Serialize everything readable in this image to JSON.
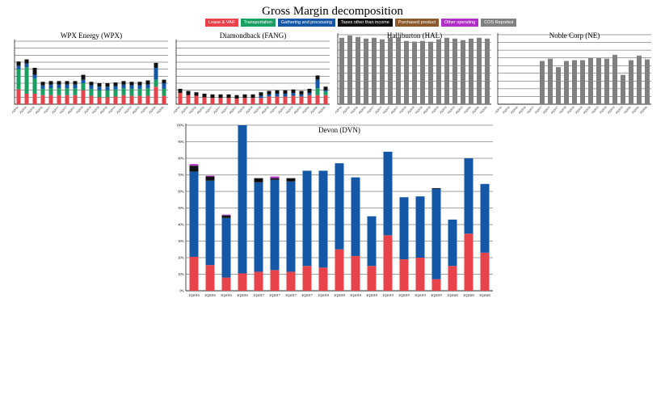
{
  "title": "Gross Margin decomposition",
  "legend": [
    {
      "label": "Lease & VAR",
      "color": "#e8434b"
    },
    {
      "label": "Transportation",
      "color": "#1a9e62"
    },
    {
      "label": "Gathering and processing",
      "color": "#1357a6"
    },
    {
      "label": "Taxes other than income",
      "color": "#111111"
    },
    {
      "label": "Purchased product",
      "color": "#8c5a2b"
    },
    {
      "label": "Other operating",
      "color": "#b22fc7"
    },
    {
      "label": "COS Reported",
      "color": "#808080"
    }
  ],
  "chart_data": [
    {
      "type": "bar",
      "stacked": true,
      "title": "WPX Energy (WPX)",
      "categories": [
        "1Q2016",
        "2Q2016",
        "3Q2016",
        "4Q2016",
        "1Q2017",
        "2Q2017",
        "3Q2017",
        "4Q2017",
        "1Q2018",
        "2Q2018",
        "3Q2018",
        "4Q2018",
        "1Q2019",
        "2Q2019",
        "3Q2019",
        "4Q2019",
        "1Q2020",
        "2Q2020",
        "3Q2020"
      ],
      "series": [
        {
          "name": "Lease & VAR",
          "values": [
            21,
            15,
            15,
            13,
            13,
            13,
            13,
            13,
            20,
            12,
            10,
            10,
            11,
            13,
            12,
            12,
            12,
            25,
            12
          ]
        },
        {
          "name": "Transportation",
          "values": [
            29,
            38,
            22,
            9,
            10,
            10,
            10,
            10,
            10,
            10,
            10,
            10,
            10,
            10,
            10,
            10,
            11,
            10,
            10
          ]
        },
        {
          "name": "Gathering and processing",
          "values": [
            5,
            5,
            5,
            5,
            5,
            5,
            5,
            5,
            5,
            5,
            5,
            5,
            5,
            5,
            5,
            5,
            5,
            17,
            8
          ]
        },
        {
          "name": "Taxes other than income",
          "values": [
            6,
            6,
            10,
            5,
            5,
            5,
            5,
            5,
            7,
            5,
            5,
            5,
            5,
            5,
            5,
            5,
            6,
            7,
            5
          ]
        }
      ],
      "ylim": [
        0,
        90
      ]
    },
    {
      "type": "bar",
      "stacked": true,
      "title": "Diamondback (FANG)",
      "categories": [
        "1Q2016",
        "2Q2016",
        "3Q2016",
        "4Q2016",
        "1Q2017",
        "2Q2017",
        "3Q2017",
        "4Q2017",
        "1Q2018",
        "2Q2018",
        "3Q2018",
        "4Q2018",
        "1Q2019",
        "2Q2019",
        "3Q2019",
        "4Q2019",
        "1Q2020",
        "2Q2020",
        "3Q2020"
      ],
      "series": [
        {
          "name": "Lease & VAR",
          "values": [
            16,
            13,
            12,
            10,
            9,
            9,
            9,
            8,
            9,
            9,
            9,
            11,
            11,
            11,
            12,
            11,
            13,
            13,
            13
          ]
        },
        {
          "name": "Transportation",
          "values": [
            0,
            0,
            0,
            0,
            0,
            0,
            0,
            0,
            0,
            0,
            0,
            0,
            0,
            0,
            0,
            0,
            0,
            10,
            5
          ]
        },
        {
          "name": "Gathering and processing",
          "values": [
            0,
            0,
            0,
            0,
            0,
            0,
            0,
            0,
            0,
            0,
            3,
            3,
            4,
            4,
            4,
            3,
            3,
            12,
            2
          ]
        },
        {
          "name": "Taxes other than income",
          "values": [
            6,
            6,
            5,
            5,
            5,
            5,
            5,
            5,
            5,
            5,
            5,
            5,
            5,
            5,
            5,
            5,
            6,
            6,
            5
          ]
        }
      ],
      "ylim": [
        0,
        90
      ]
    },
    {
      "type": "bar",
      "title": "Halliburton (HAL)",
      "categories": [
        "1Q2016",
        "2Q2016",
        "3Q2016",
        "4Q2016",
        "1Q2017",
        "2Q2017",
        "3Q2017",
        "4Q2017",
        "1Q2018",
        "2Q2018",
        "3Q2018",
        "4Q2018",
        "1Q2019",
        "2Q2019",
        "3Q2019",
        "4Q2019",
        "1Q2020",
        "2Q2020",
        "3Q2020"
      ],
      "series": [
        {
          "name": "COS Reported",
          "values": [
            86,
            89,
            87,
            85,
            86,
            84,
            86,
            86,
            82,
            81,
            82,
            81,
            84,
            86,
            85,
            83,
            85,
            86,
            85
          ]
        }
      ],
      "ylim": [
        0,
        90
      ]
    },
    {
      "type": "bar",
      "title": "Noble Corp (NE)",
      "categories": [
        "1Q2016",
        "2Q2016",
        "3Q2016",
        "4Q2016",
        "1Q2017",
        "2Q2017",
        "3Q2017",
        "4Q2017",
        "1Q2018",
        "2Q2018",
        "3Q2018",
        "4Q2018",
        "1Q2019",
        "2Q2019",
        "3Q2019",
        "4Q2019",
        "1Q2020",
        "2Q2020",
        "3Q2020"
      ],
      "series": [
        {
          "name": "COS Reported",
          "values": [
            0,
            0,
            0,
            0,
            0,
            56,
            59,
            48,
            56,
            57,
            57,
            60,
            60,
            59,
            64,
            38,
            57,
            63,
            58
          ]
        }
      ],
      "ylim": [
        0,
        90
      ]
    },
    {
      "type": "bar",
      "stacked": true,
      "title": "Devon (DVN)",
      "categories": [
        "1Q2016",
        "2Q2016",
        "3Q2016",
        "4Q2016",
        "1Q2017",
        "2Q2017",
        "3Q2017",
        "4Q2017",
        "1Q2018",
        "2Q2018",
        "3Q2018",
        "4Q2018",
        "1Q2019",
        "2Q2019",
        "3Q2019",
        "4Q2019",
        "1Q2020",
        "2Q2020",
        "3Q2020"
      ],
      "series": [
        {
          "name": "Lease & VAR",
          "values": [
            20.5,
            15.5,
            8.0,
            10.5,
            11.5,
            12.5,
            11.5,
            15.0,
            14.0,
            25.0,
            21.0,
            15.0,
            33.5,
            19.0,
            20.0,
            7.0,
            15.0,
            34.5,
            23.0
          ]
        },
        {
          "name": "Gathering and processing",
          "values": [
            51.5,
            51.0,
            36.0,
            89.5,
            54.0,
            54.5,
            54.5,
            57.5,
            58.5,
            52.0,
            47.5,
            30.0,
            50.5,
            37.5,
            37.0,
            54.5,
            28.0,
            45.5,
            41.5
          ]
        },
        {
          "name": "Taxes other than income",
          "values": [
            3.5,
            2.5,
            1.5,
            0,
            2.5,
            1.0,
            2.0,
            0,
            0,
            0,
            0,
            0,
            0,
            0,
            0,
            0.5,
            0,
            0,
            0
          ]
        },
        {
          "name": "Other operating",
          "values": [
            1.0,
            0.5,
            0.5,
            0,
            0,
            1.0,
            0,
            0,
            0,
            0,
            0,
            0,
            0,
            0,
            0,
            0,
            0,
            0,
            0
          ]
        }
      ],
      "ylim": [
        0,
        100
      ],
      "yticks": [
        "0%",
        "10%",
        "20%",
        "30%",
        "40%",
        "50%",
        "60%",
        "70%",
        "80%",
        "90%",
        "100%"
      ]
    }
  ]
}
